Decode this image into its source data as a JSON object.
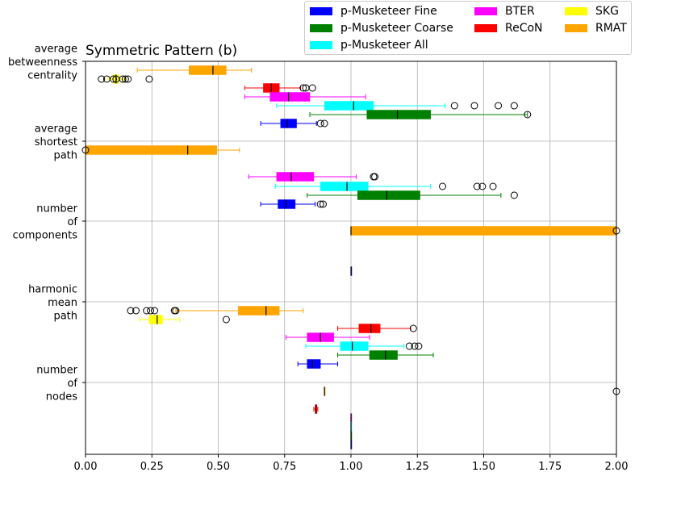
{
  "chart_data": {
    "type": "boxplot",
    "title": "Symmetric Pattern (b)",
    "orientation": "horizontal",
    "xlim": [
      0.0,
      2.0
    ],
    "x_ticks": [
      "0.00",
      "0.25",
      "0.50",
      "0.75",
      "1.00",
      "1.25",
      "1.50",
      "1.75",
      "2.00"
    ],
    "grid": true,
    "legend": {
      "placement": "top-right, above plot",
      "entries": [
        {
          "label": "p-Musketeer Fine",
          "color": "#0000ff"
        },
        {
          "label": "p-Musketeer Coarse",
          "color": "#008000"
        },
        {
          "label": "p-Musketeer All",
          "color": "#00ffff"
        },
        {
          "label": "BTER",
          "color": "#ff00ff"
        },
        {
          "label": "ReCoN",
          "color": "#ff0000"
        },
        {
          "label": "SKG",
          "color": "#ffff00"
        },
        {
          "label": "RMAT",
          "color": "#ffa500"
        }
      ]
    },
    "groups": [
      {
        "label": "average betweenness centrality",
        "label_lines": [
          "average",
          "betweenness",
          "centrality"
        ],
        "boxes": [
          {
            "series": "RMAT",
            "whisker_low": 0.195,
            "q1": 0.39,
            "median": 0.48,
            "q3": 0.53,
            "whisker_high": 0.625,
            "outliers": []
          },
          {
            "series": "SKG",
            "whisker_low": 0.085,
            "q1": 0.105,
            "median": 0.115,
            "q3": 0.125,
            "whisker_high": 0.145,
            "outliers": [
              0.06,
              0.08,
              0.105,
              0.115,
              0.14,
              0.15,
              0.16,
              0.24
            ]
          },
          {
            "series": "ReCoN",
            "whisker_low": 0.6,
            "q1": 0.67,
            "median": 0.7,
            "q3": 0.73,
            "whisker_high": 0.81,
            "outliers": [
              0.82,
              0.83,
              0.855
            ]
          },
          {
            "series": "BTER",
            "whisker_low": 0.6,
            "q1": 0.695,
            "median": 0.765,
            "q3": 0.845,
            "whisker_high": 1.055,
            "outliers": []
          },
          {
            "series": "p-Musketeer All",
            "whisker_low": 0.72,
            "q1": 0.9,
            "median": 1.01,
            "q3": 1.085,
            "whisker_high": 1.355,
            "outliers": [
              1.39,
              1.465,
              1.555,
              1.615
            ]
          },
          {
            "series": "p-Musketeer Coarse",
            "whisker_low": 0.845,
            "q1": 1.06,
            "median": 1.175,
            "q3": 1.3,
            "whisker_high": 1.665,
            "outliers": [
              1.665
            ]
          },
          {
            "series": "p-Musketeer Fine",
            "whisker_low": 0.66,
            "q1": 0.735,
            "median": 0.76,
            "q3": 0.795,
            "whisker_high": 0.87,
            "outliers": [
              0.885,
              0.9
            ]
          }
        ]
      },
      {
        "label": "average shortest path",
        "label_lines": [
          "average",
          "shortest",
          "path"
        ],
        "boxes": [
          {
            "series": "RMAT",
            "whisker_low": 0.0,
            "q1": 0.0,
            "median": 0.385,
            "q3": 0.495,
            "whisker_high": 0.58,
            "outliers": [
              0.0
            ]
          },
          {
            "series": "BTER",
            "whisker_low": 0.615,
            "q1": 0.72,
            "median": 0.775,
            "q3": 0.86,
            "whisker_high": 1.02,
            "outliers": [
              1.085,
              1.09
            ]
          },
          {
            "series": "p-Musketeer All",
            "whisker_low": 0.715,
            "q1": 0.885,
            "median": 0.985,
            "q3": 1.065,
            "whisker_high": 1.3,
            "outliers": [
              1.345,
              1.475,
              1.495,
              1.535
            ]
          },
          {
            "series": "p-Musketeer Coarse",
            "whisker_low": 0.835,
            "q1": 1.025,
            "median": 1.135,
            "q3": 1.26,
            "whisker_high": 1.565,
            "outliers": [
              1.615
            ]
          },
          {
            "series": "p-Musketeer Fine",
            "whisker_low": 0.66,
            "q1": 0.725,
            "median": 0.755,
            "q3": 0.79,
            "whisker_high": 0.865,
            "outliers": [
              0.885,
              0.895
            ]
          }
        ]
      },
      {
        "label": "number of components",
        "label_lines": [
          "number",
          "of",
          "components"
        ],
        "boxes": [
          {
            "series": "RMAT",
            "whisker_low": 1.0,
            "q1": 1.0,
            "median": 1.0,
            "q3": 2.0,
            "whisker_high": 2.0,
            "outliers": [
              2.0
            ]
          },
          {
            "series": "p-Musketeer Fine",
            "whisker_low": 1.0,
            "q1": 1.0,
            "median": 1.0,
            "q3": 1.0,
            "whisker_high": 1.0,
            "outliers": []
          }
        ]
      },
      {
        "label": "harmonic mean path",
        "label_lines": [
          "harmonic",
          "mean",
          "path"
        ],
        "boxes": [
          {
            "series": "RMAT",
            "whisker_low": 0.34,
            "q1": 0.575,
            "median": 0.68,
            "q3": 0.73,
            "whisker_high": 0.82,
            "outliers": [
              0.17,
              0.19,
              0.23,
              0.245,
              0.26,
              0.335,
              0.34
            ]
          },
          {
            "series": "SKG",
            "whisker_low": 0.205,
            "q1": 0.24,
            "median": 0.27,
            "q3": 0.29,
            "whisker_high": 0.355,
            "outliers": [
              0.53
            ]
          },
          {
            "series": "ReCoN",
            "whisker_low": 0.95,
            "q1": 1.03,
            "median": 1.075,
            "q3": 1.11,
            "whisker_high": 1.225,
            "outliers": [
              1.235
            ]
          },
          {
            "series": "BTER",
            "whisker_low": 0.755,
            "q1": 0.835,
            "median": 0.885,
            "q3": 0.935,
            "whisker_high": 1.07,
            "outliers": []
          },
          {
            "series": "p-Musketeer All",
            "whisker_low": 0.83,
            "q1": 0.96,
            "median": 1.005,
            "q3": 1.065,
            "whisker_high": 1.2,
            "outliers": [
              1.22,
              1.24,
              1.255
            ]
          },
          {
            "series": "p-Musketeer Coarse",
            "whisker_low": 0.95,
            "q1": 1.07,
            "median": 1.13,
            "q3": 1.175,
            "whisker_high": 1.31,
            "outliers": []
          },
          {
            "series": "p-Musketeer Fine",
            "whisker_low": 0.8,
            "q1": 0.835,
            "median": 0.855,
            "q3": 0.885,
            "whisker_high": 0.95,
            "outliers": []
          }
        ]
      },
      {
        "label": "number of nodes",
        "label_lines": [
          "number",
          "of",
          "nodes"
        ],
        "boxes": [
          {
            "series": "RMAT",
            "whisker_low": 0.9,
            "q1": 0.9,
            "median": 0.9,
            "q3": 0.9,
            "whisker_high": 0.9,
            "outliers": [
              2.0
            ]
          },
          {
            "series": "ReCoN",
            "whisker_low": 0.86,
            "q1": 0.865,
            "median": 0.868,
            "q3": 0.872,
            "whisker_high": 0.875,
            "outliers": []
          },
          {
            "series": "BTER",
            "whisker_low": 1.0,
            "q1": 1.0,
            "median": 1.0,
            "q3": 1.0,
            "whisker_high": 1.0,
            "outliers": []
          },
          {
            "series": "p-Musketeer All",
            "whisker_low": 1.0,
            "q1": 1.0,
            "median": 1.0,
            "q3": 1.0,
            "whisker_high": 1.0,
            "outliers": []
          },
          {
            "series": "p-Musketeer Coarse",
            "whisker_low": 1.0,
            "q1": 1.0,
            "median": 1.0,
            "q3": 1.0,
            "whisker_high": 1.0,
            "outliers": []
          },
          {
            "series": "p-Musketeer Fine",
            "whisker_low": 1.0,
            "q1": 1.0,
            "median": 1.0,
            "q3": 1.0,
            "whisker_high": 1.0,
            "outliers": []
          }
        ]
      }
    ]
  }
}
